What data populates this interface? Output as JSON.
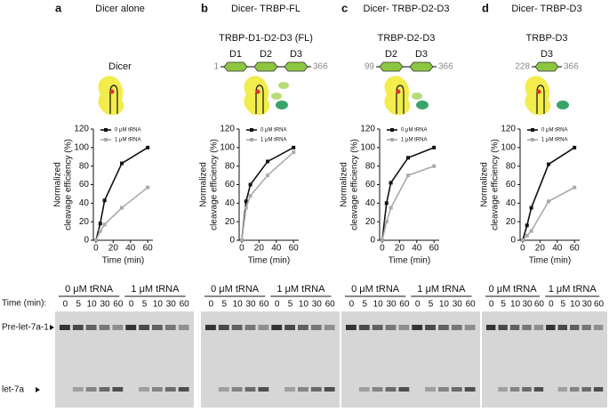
{
  "panels": [
    {
      "label": "a",
      "title": "Dicer alone",
      "construct": "Dicer"
    },
    {
      "label": "b",
      "title": "Dicer- TRBP-FL",
      "subtitle": "TRBP-D1-D2-D3 (FL)",
      "domains": [
        "D1",
        "D2",
        "D3"
      ],
      "start": 1,
      "end": 366
    },
    {
      "label": "c",
      "title": "Dicer- TRBP-D2-D3",
      "subtitle": "TRBP-D2-D3",
      "domains": [
        "D2",
        "D3"
      ],
      "start": 99,
      "end": 366
    },
    {
      "label": "d",
      "title": "Dicer- TRBP-D3",
      "subtitle": "TRBP-D3",
      "domains": [
        "D3"
      ],
      "start": 228,
      "end": 366
    }
  ],
  "chart_data": [
    {
      "type": "line",
      "xlabel": "Time (min)",
      "ylabel": [
        "Normalized",
        "cleavage efficiency (%)"
      ],
      "x": [
        0,
        5,
        10,
        30,
        60
      ],
      "xlim": [
        -3,
        66
      ],
      "xticks": [
        0,
        20,
        40,
        60
      ],
      "ylim": [
        0,
        120
      ],
      "yticks": [
        0,
        20,
        40,
        60,
        80,
        100,
        120
      ],
      "series": [
        {
          "name": "0 μM tRNA",
          "color": "#111111",
          "values": [
            0,
            18,
            43,
            83,
            100
          ]
        },
        {
          "name": "1 μM tRNA",
          "color": "#aaaaaa",
          "values": [
            0,
            10,
            17,
            35,
            57
          ]
        }
      ]
    },
    {
      "type": "line",
      "xlabel": "Time (min)",
      "ylabel": [
        "Normalized",
        "cleavage efficiency (%)"
      ],
      "x": [
        0,
        5,
        10,
        30,
        60
      ],
      "xlim": [
        -3,
        66
      ],
      "xticks": [
        0,
        20,
        40,
        60
      ],
      "ylim": [
        0,
        120
      ],
      "yticks": [
        0,
        20,
        40,
        60,
        80,
        100,
        120
      ],
      "series": [
        {
          "name": "0 μM tRNA",
          "color": "#111111",
          "values": [
            0,
            42,
            60,
            85,
            100
          ]
        },
        {
          "name": "1 μM tRNA",
          "color": "#aaaaaa",
          "values": [
            0,
            35,
            48,
            70,
            95
          ]
        }
      ]
    },
    {
      "type": "line",
      "xlabel": "Time (min)",
      "ylabel": [
        "Normalized",
        "cleavage efficiency (%)"
      ],
      "x": [
        0,
        5,
        10,
        30,
        60
      ],
      "xlim": [
        -3,
        66
      ],
      "xticks": [
        0,
        20,
        40,
        60
      ],
      "ylim": [
        0,
        120
      ],
      "yticks": [
        0,
        20,
        40,
        60,
        80,
        100,
        120
      ],
      "series": [
        {
          "name": "0 μM tRNA",
          "color": "#111111",
          "values": [
            0,
            40,
            62,
            89,
            100
          ]
        },
        {
          "name": "1 μM tRNA",
          "color": "#aaaaaa",
          "values": [
            0,
            20,
            35,
            70,
            80
          ]
        }
      ]
    },
    {
      "type": "line",
      "xlabel": "Time (min)",
      "ylabel": [
        "Normalized",
        "cleavage efficiency (%)"
      ],
      "x": [
        0,
        5,
        10,
        30,
        60
      ],
      "xlim": [
        -3,
        66
      ],
      "xticks": [
        0,
        20,
        40,
        60
      ],
      "ylim": [
        0,
        120
      ],
      "yticks": [
        0,
        20,
        40,
        60,
        80,
        100,
        120
      ],
      "series": [
        {
          "name": "0 μM tRNA",
          "color": "#111111",
          "values": [
            0,
            16,
            35,
            82,
            100
          ]
        },
        {
          "name": "1 μM tRNA",
          "color": "#aaaaaa",
          "values": [
            0,
            5,
            10,
            42,
            57
          ]
        }
      ]
    }
  ],
  "gel": {
    "time_label": "Time (min):",
    "bands": [
      "Pre-let-7a-1",
      "let-7a"
    ],
    "groups": [
      "0 μM tRNA",
      "1 μM tRNA"
    ],
    "times": [
      "0",
      "5",
      "10",
      "30",
      "60"
    ]
  }
}
